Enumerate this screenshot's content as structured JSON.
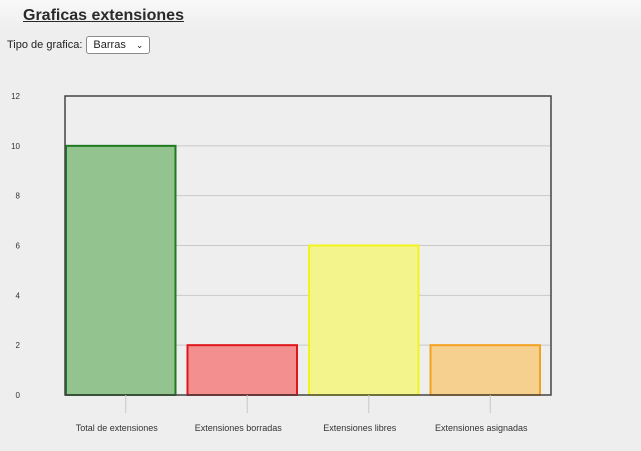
{
  "page": {
    "title": "Graficas extensiones",
    "type_label": "Tipo de grafica:",
    "type_selected": "Barras"
  },
  "chart_data": {
    "type": "bar",
    "categories": [
      "Total de extensiones",
      "Extensiones borradas",
      "Extensiones libres",
      "Extensiones asignadas"
    ],
    "values": [
      10,
      2,
      6,
      2
    ],
    "ylim": [
      0,
      12
    ],
    "yticks": [
      0,
      2,
      4,
      6,
      8,
      10,
      12
    ],
    "grid": true,
    "fill_colors": [
      "#93c48f",
      "#f48f8f",
      "#f3f48c",
      "#f5d08f"
    ],
    "border_colors": [
      "#1e7a1e",
      "#e0161d",
      "#f3f31a",
      "#f3a21f"
    ]
  }
}
